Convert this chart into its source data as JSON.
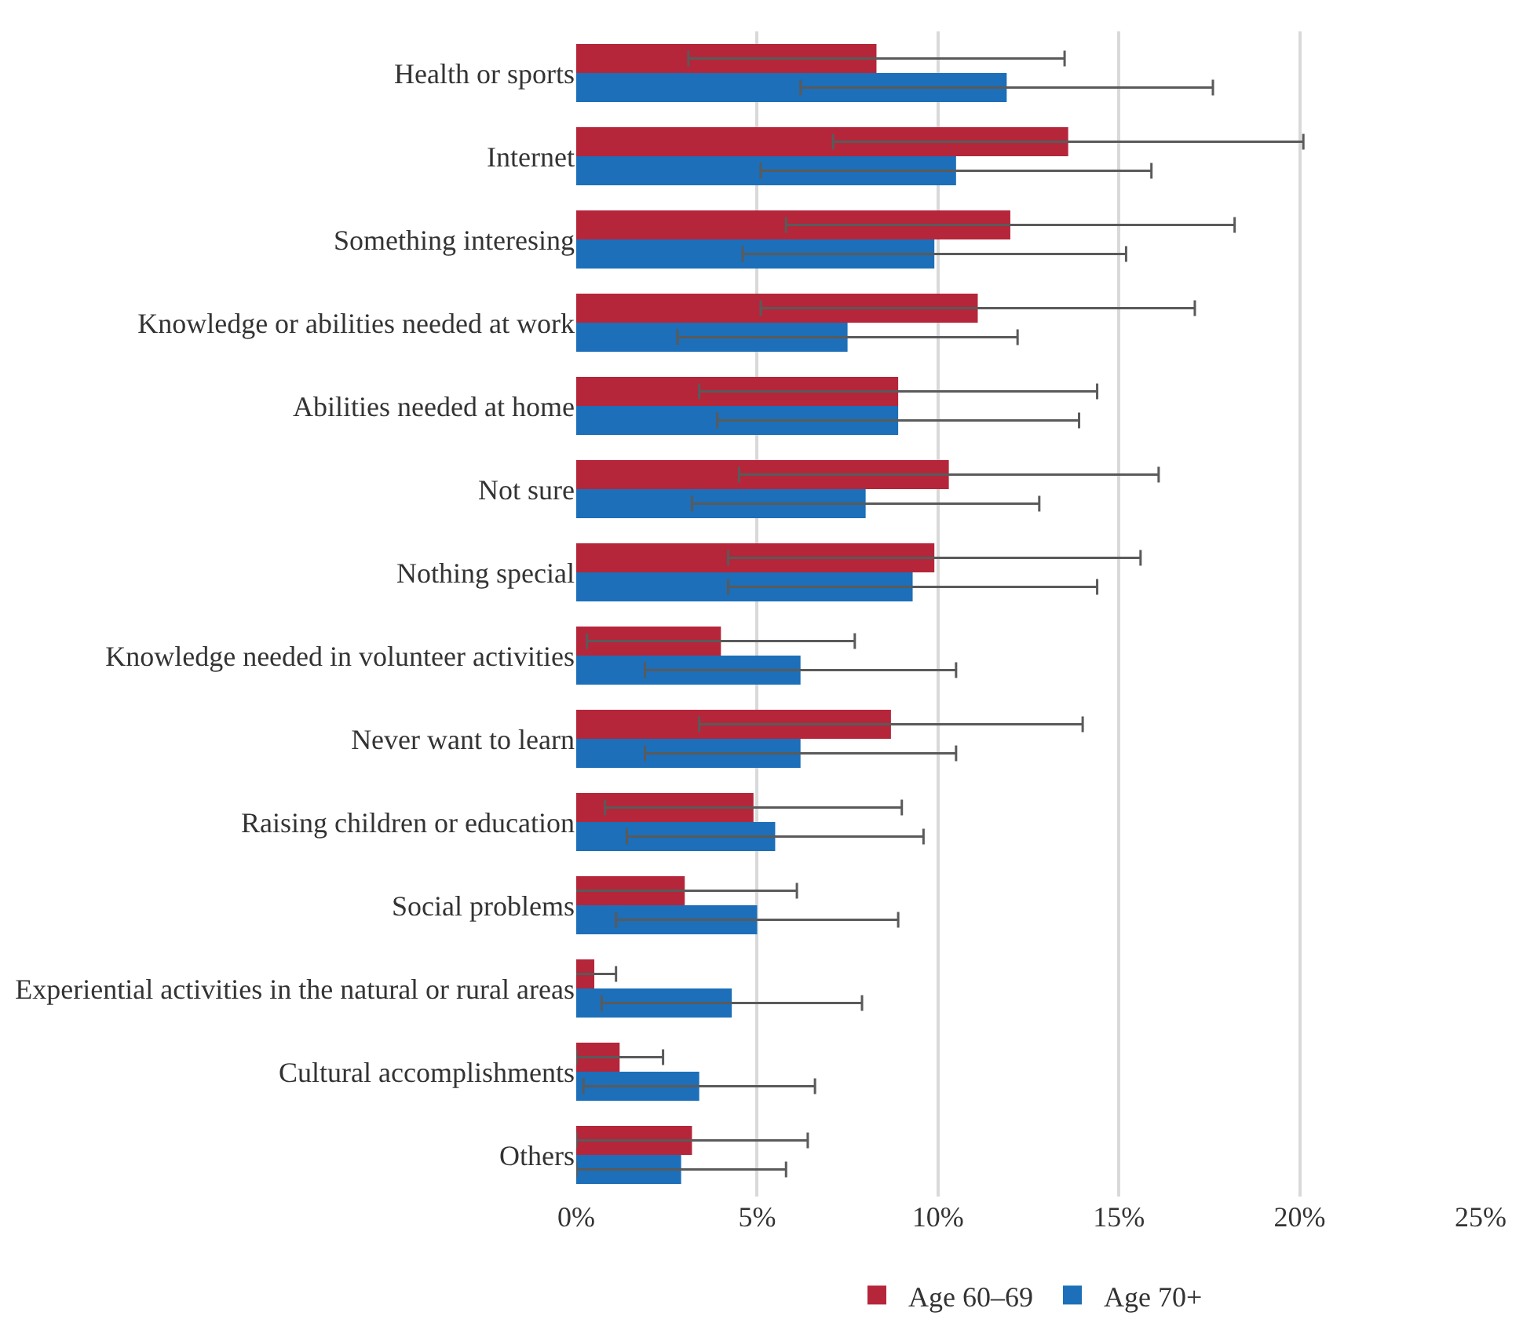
{
  "chart_data": {
    "type": "bar",
    "orientation": "horizontal",
    "categories": [
      "Health or sports",
      "Internet",
      "Something interesing",
      "Knowledge or abilities needed at work",
      "Abilities needed at home",
      "Not sure",
      "Nothing special",
      "Knowledge needed in volunteer activities",
      "Never want to learn",
      "Raising children or education",
      "Social problems",
      "Experiential activities in the natural or rural areas",
      "Cultural accomplishments",
      "Others"
    ],
    "series": [
      {
        "name": "Age 60–69",
        "color": "#b5263a",
        "values": [
          8.3,
          13.6,
          12.0,
          11.1,
          8.9,
          10.3,
          9.9,
          4.0,
          8.7,
          4.9,
          3.0,
          0.5,
          1.2,
          3.2
        ],
        "errors": [
          5.2,
          6.5,
          6.2,
          6.0,
          5.5,
          5.8,
          5.7,
          3.7,
          5.3,
          4.1,
          3.1,
          0.6,
          1.2,
          3.2
        ]
      },
      {
        "name": "Age 70+",
        "color": "#1c6fb8",
        "values": [
          11.9,
          10.5,
          9.9,
          7.5,
          8.9,
          8.0,
          9.3,
          6.2,
          6.2,
          5.5,
          5.0,
          4.3,
          3.4,
          2.9
        ],
        "errors": [
          5.7,
          5.4,
          5.3,
          4.7,
          5.0,
          4.8,
          5.1,
          4.3,
          4.3,
          4.1,
          3.9,
          3.6,
          3.2,
          2.9
        ]
      }
    ],
    "xlim": [
      0,
      25
    ],
    "xticks": [
      {
        "value": 0,
        "label": "0%"
      },
      {
        "value": 5,
        "label": "5%"
      },
      {
        "value": 10,
        "label": "10%"
      },
      {
        "value": 15,
        "label": "15%"
      },
      {
        "value": 20,
        "label": "20%"
      },
      {
        "value": 25,
        "label": "25%"
      }
    ],
    "grid": "x",
    "legend": "bottom"
  }
}
